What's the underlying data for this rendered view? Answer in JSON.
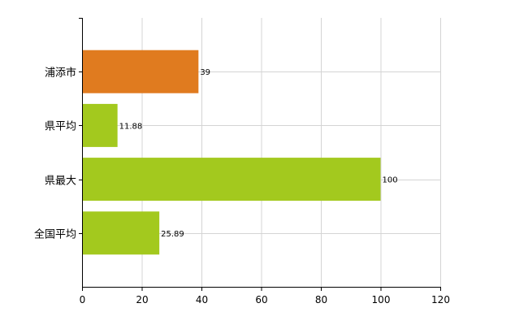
{
  "chart_data": {
    "type": "bar",
    "orientation": "horizontal",
    "categories": [
      "浦添市",
      "県平均",
      "県最大",
      "全国平均"
    ],
    "values": [
      39,
      11.88,
      100,
      25.89
    ],
    "value_labels": [
      "39",
      "11.88",
      "100",
      "25.89"
    ],
    "bar_colors": [
      "#e07b1f",
      "#a3c91e",
      "#a3c91e",
      "#a3c91e"
    ],
    "xlim": [
      0,
      120
    ],
    "x_ticks": [
      0,
      20,
      40,
      60,
      80,
      100,
      120
    ],
    "x_tick_labels": [
      "0",
      "20",
      "40",
      "60",
      "80",
      "100",
      "120"
    ],
    "title": "",
    "xlabel": "",
    "ylabel": "",
    "grid": true,
    "legend": "none"
  },
  "colors": {
    "highlight": "#e07b1f",
    "default_bar": "#a3c91e",
    "grid": "#d4d4d4",
    "axis": "#000000"
  }
}
